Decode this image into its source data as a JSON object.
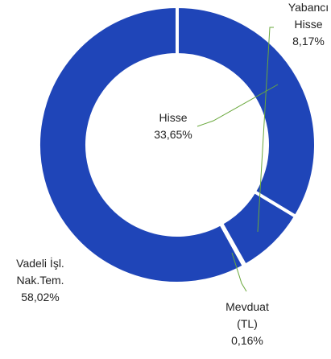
{
  "chart_data": {
    "type": "donut",
    "categories": [
      "Hisse",
      "Yabancı Hisse",
      "Mevduat (TL)",
      "Vadeli İşl. Nak.Tem."
    ],
    "values": [
      33.65,
      8.17,
      0.16,
      58.02
    ],
    "value_labels": [
      "33,65%",
      "8,17%",
      "0,16%",
      "58,02%"
    ],
    "color": "#1f45b8"
  }
}
